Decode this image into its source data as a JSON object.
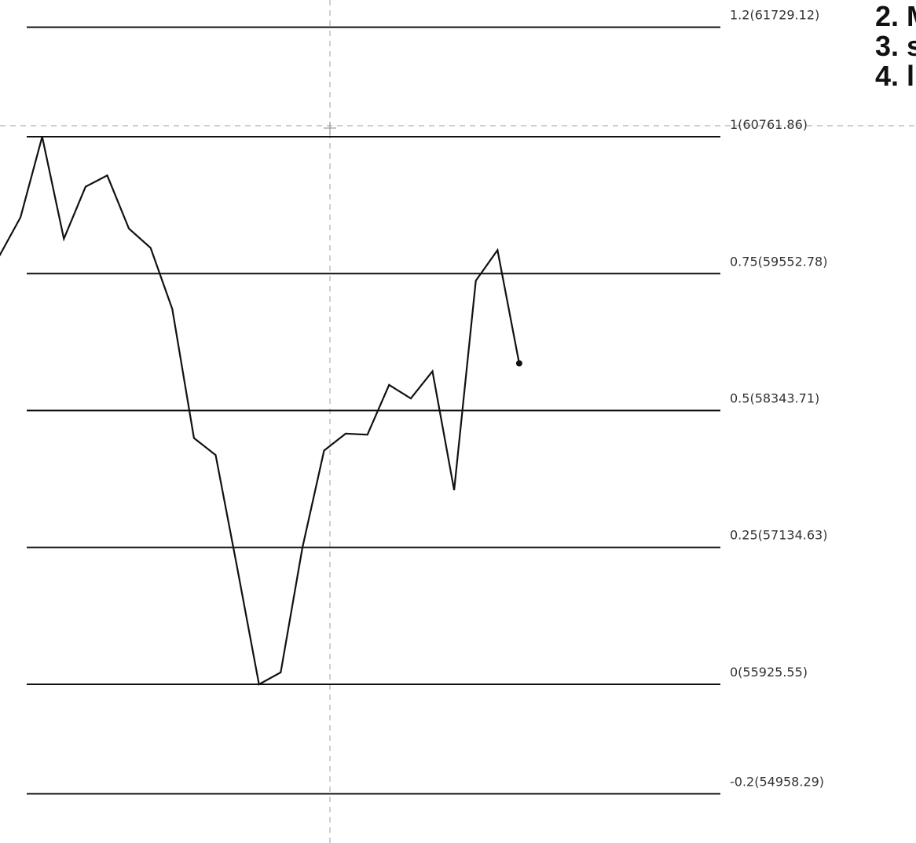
{
  "chart_data": {
    "type": "line",
    "title": "",
    "xlabel": "",
    "ylabel": "",
    "ylim": [
      54700,
      62200
    ],
    "grid": false,
    "colors": {
      "line": "#111111",
      "level": "#111111",
      "crosshair": "#b0b0b0",
      "label": "#333333"
    },
    "fib_levels": [
      {
        "label": "1.2(61729.12)",
        "ratio": 1.2,
        "price": 61729.12
      },
      {
        "label": "1(60761.86)",
        "ratio": 1,
        "price": 60761.86
      },
      {
        "label": "0.75(59552.78)",
        "ratio": 0.75,
        "price": 59552.78
      },
      {
        "label": "0.5(58343.71)",
        "ratio": 0.5,
        "price": 58343.71
      },
      {
        "label": "0.25(57134.63)",
        "ratio": 0.25,
        "price": 57134.63
      },
      {
        "label": "0(55925.55)",
        "ratio": 0,
        "price": 55925.55
      },
      {
        "label": "-0.2(54958.29)",
        "ratio": -0.2,
        "price": 54958.29
      }
    ],
    "series": [
      {
        "values": [
          59700,
          60050,
          60762,
          59860,
          60320,
          60420,
          59950,
          59780,
          59240,
          58100,
          57950,
          56950,
          55925,
          56030,
          57130,
          57990,
          58140,
          58130,
          58570,
          58450,
          58690,
          57640,
          59490,
          59760,
          58760
        ]
      }
    ],
    "crosshair": {
      "price": 60761.86
    }
  },
  "steps": [
    "2. M",
    "3. s",
    "4. l"
  ]
}
